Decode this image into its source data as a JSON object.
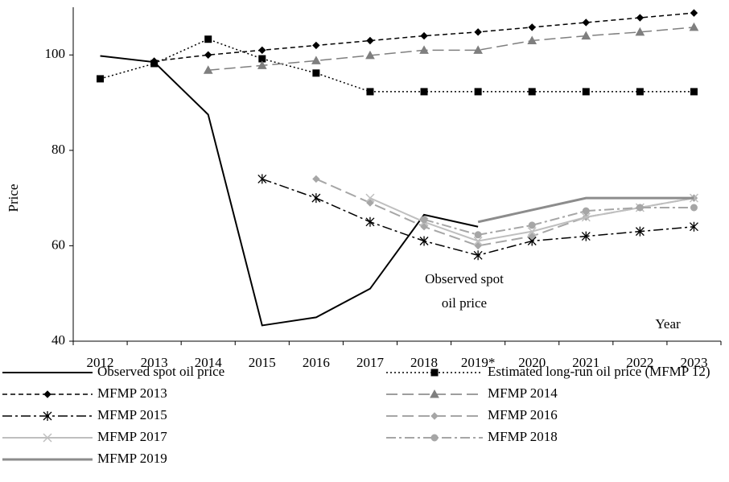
{
  "chart_data": {
    "type": "line",
    "y_label": "Price",
    "x_label": "Year",
    "annotations": [
      "Observed spot",
      "oil price"
    ],
    "categories": [
      "2012",
      "2013",
      "2014",
      "2015",
      "2016",
      "2017",
      "2018",
      "2019*",
      "2020",
      "2021",
      "2022",
      "2023"
    ],
    "ylim": [
      40,
      110
    ],
    "yticks": [
      40,
      60,
      80,
      100
    ],
    "series": [
      {
        "name": "Observed spot oil price",
        "color": "#000000",
        "dash": "solid",
        "width": 2,
        "marker": "none",
        "values": [
          99.8,
          98.5,
          87.5,
          43.3,
          45,
          51,
          66.5,
          64,
          null,
          null,
          null,
          null
        ]
      },
      {
        "name": "Estimated long-run oil price (MFMP 12)",
        "color": "#000000",
        "dash": "dotted",
        "width": 1.5,
        "marker": "square",
        "values": [
          95,
          98.2,
          103.3,
          99.2,
          96.2,
          92.3,
          92.3,
          92.3,
          92.3,
          92.3,
          92.3,
          92.3
        ]
      },
      {
        "name": "MFMP 2013",
        "color": "#000000",
        "dash": "dashed",
        "width": 1.5,
        "marker": "diamond",
        "values": [
          null,
          98.7,
          100,
          101,
          102,
          103,
          104,
          104.8,
          105.8,
          106.8,
          107.8,
          108.8
        ]
      },
      {
        "name": "MFMP 2014",
        "color": "#7f7f7f",
        "dash": "longdash",
        "width": 1.5,
        "marker": "triangle",
        "values": [
          null,
          null,
          96.8,
          97.8,
          98.8,
          99.9,
          101,
          101,
          103,
          104,
          104.8,
          105.8
        ]
      },
      {
        "name": "MFMP 2015",
        "color": "#000000",
        "dash": "dashdot",
        "width": 1.5,
        "marker": "asterisk",
        "values": [
          null,
          null,
          null,
          74,
          70,
          65,
          61,
          58,
          61,
          62,
          63,
          64
        ]
      },
      {
        "name": "MFMP 2016",
        "color": "#a6a6a6",
        "dash": "longdash",
        "width": 2,
        "marker": "diamond",
        "values": [
          null,
          null,
          null,
          null,
          74,
          69,
          64,
          60,
          62,
          66,
          68,
          70
        ]
      },
      {
        "name": "MFMP 2017",
        "color": "#bfbfbf",
        "dash": "solid",
        "width": 2,
        "marker": "x",
        "values": [
          null,
          null,
          null,
          null,
          null,
          70,
          65,
          61,
          63,
          66,
          68,
          70
        ]
      },
      {
        "name": "MFMP 2018",
        "color": "#a6a6a6",
        "dash": "dashdot",
        "width": 2,
        "marker": "circle",
        "values": [
          null,
          null,
          null,
          null,
          null,
          null,
          65.5,
          62.3,
          64.3,
          67.3,
          68,
          68
        ]
      },
      {
        "name": "MFMP 2019",
        "color": "#8c8c8c",
        "dash": "solid",
        "width": 3,
        "marker": "none",
        "values": [
          null,
          null,
          null,
          null,
          null,
          null,
          null,
          65,
          67.5,
          70,
          70,
          70
        ]
      }
    ]
  }
}
